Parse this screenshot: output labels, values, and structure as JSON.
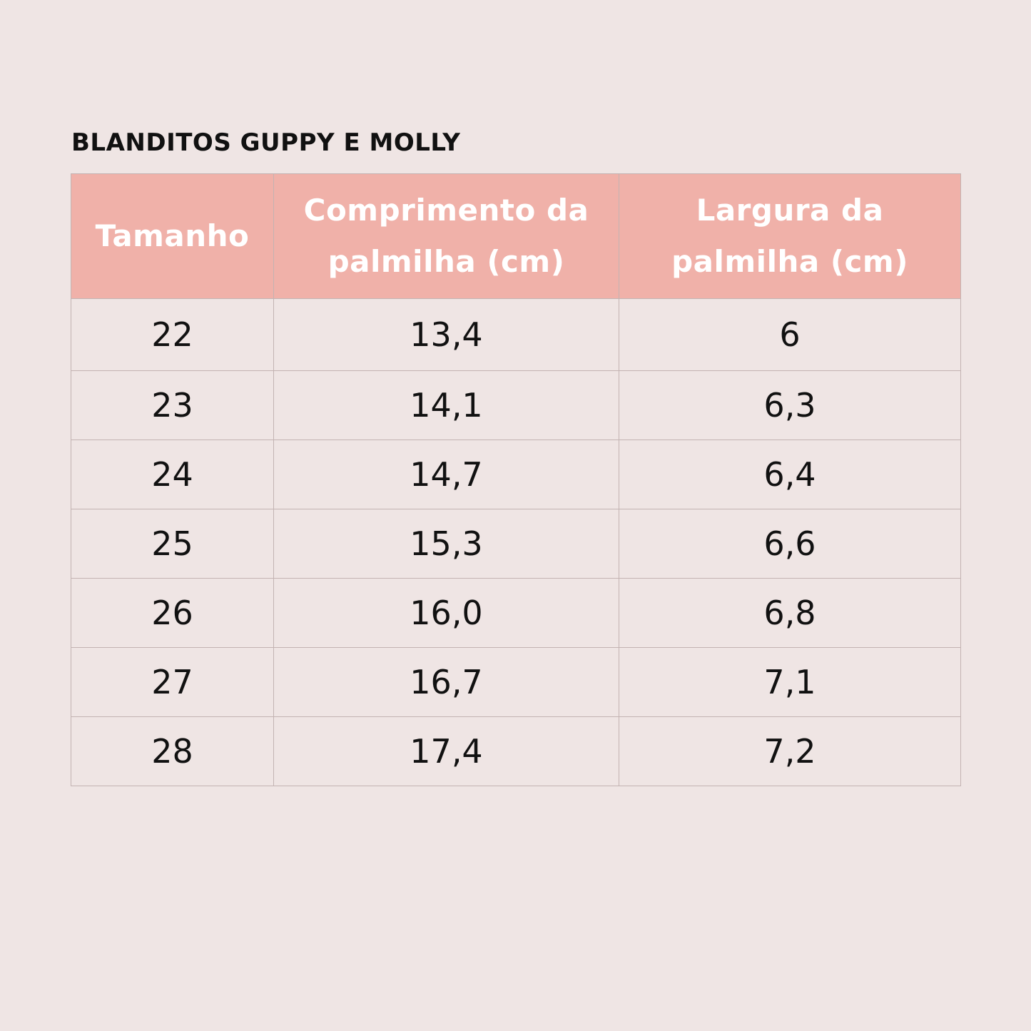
{
  "title": "BLANDITOS GUPPY E MOLLY",
  "table": {
    "headers": [
      "Tamanho",
      "Comprimento da palmilha (cm)",
      "Largura da palmilha (cm)"
    ],
    "rows": [
      [
        "22",
        "13,4",
        "6"
      ],
      [
        "23",
        "14,1",
        "6,3"
      ],
      [
        "24",
        "14,7",
        "6,4"
      ],
      [
        "25",
        "15,3",
        "6,6"
      ],
      [
        "26",
        "16,0",
        "6,8"
      ],
      [
        "27",
        "16,7",
        "7,1"
      ],
      [
        "28",
        "17,4",
        "7,2"
      ]
    ]
  },
  "colors": {
    "background": "#efe5e4",
    "header_fill": "#f0b1a9",
    "header_text": "#ffffff",
    "body_text": "#111111",
    "grid_line": "#c3b3b2"
  }
}
